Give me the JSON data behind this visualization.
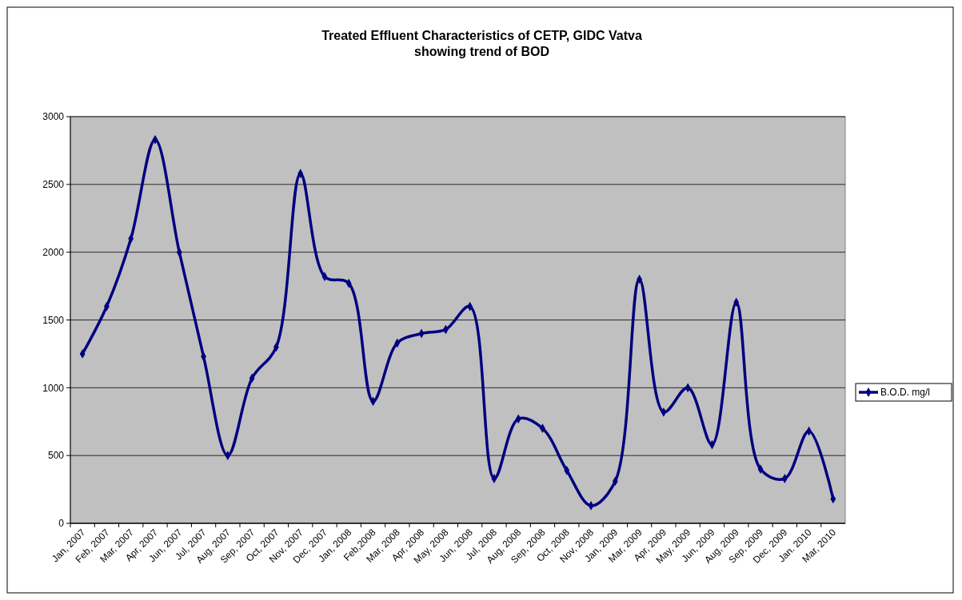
{
  "chart_data": {
    "type": "line",
    "title": "Treated Effluent Characteristics of CETP, GIDC Vatva\nshowing trend of BOD",
    "categories": [
      "Jan, 2007",
      "Feb, 2007",
      "Mar, 2007",
      "Apr, 2007",
      "Jun, 2007",
      "Jul, 2007",
      "Aug, 2007",
      "Sep, 2007",
      "Oct, 2007",
      "Nov, 2007",
      "Dec, 2007",
      "Jan, 2008",
      "Feb,2008",
      "Mar, 2008",
      "Apr, 2008",
      "May, 2008",
      "Jun, 2008",
      "Jul, 2008",
      "Aug, 2008",
      "Sep, 2008",
      "Oct, 2008",
      "Nov, 2008",
      "Jan, 2009",
      "Mar, 2009",
      "Apr, 2009",
      "May, 2009",
      "Jun, 2009",
      "Aug, 2009",
      "Sep, 2009",
      "Dec, 2009",
      "Jan. 2010",
      "Mar, 2010"
    ],
    "series": [
      {
        "name": "B.O.D. mg/l",
        "color": "#000080",
        "values": [
          1250,
          1600,
          2100,
          2830,
          2000,
          1230,
          500,
          1070,
          1300,
          2580,
          1820,
          1770,
          900,
          1330,
          1400,
          1430,
          1600,
          330,
          770,
          700,
          390,
          130,
          310,
          1800,
          820,
          1000,
          580,
          1630,
          400,
          330,
          680,
          180
        ]
      }
    ],
    "ylim": [
      0,
      3000
    ],
    "yticks": [
      0,
      500,
      1000,
      1500,
      2000,
      2500,
      3000
    ],
    "grid": "y",
    "legend": "right",
    "marker": "diamond",
    "line_style": "solid"
  }
}
